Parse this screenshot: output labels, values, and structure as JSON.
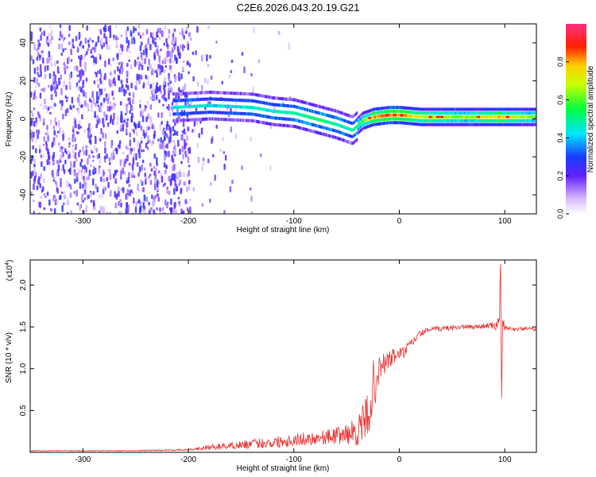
{
  "figure": {
    "title": "C2E6.2026.043.20.19.G21"
  },
  "colors": {
    "snr_line": "#e8302e",
    "axis": "#000000",
    "background": "#ffffff"
  },
  "chart_data": [
    {
      "type": "heatmap",
      "title": "C2E6.2026.043.20.19.G21",
      "xlabel": "Height of straight line (km)",
      "ylabel": "Frequency (Hz)",
      "xlim": [
        -350,
        130
      ],
      "ylim": [
        -50,
        50
      ],
      "x_ticks": [
        -300,
        -200,
        -100,
        0,
        100
      ],
      "y_ticks": [
        -40,
        -20,
        0,
        20,
        40
      ],
      "colorbar": {
        "label": "Normalized spectral amplitude",
        "range": [
          0,
          1
        ],
        "ticks": [
          0.0,
          0.2,
          0.4,
          0.6,
          0.8
        ],
        "tick_labels": [
          "0.0",
          "0.2",
          "0.4",
          "0.6",
          "0.8"
        ]
      },
      "ridge": [
        {
          "x": -215,
          "y": 6,
          "amp": 0.45
        },
        {
          "x": -180,
          "y": 7,
          "amp": 0.42
        },
        {
          "x": -140,
          "y": 6,
          "amp": 0.44
        },
        {
          "x": -120,
          "y": 4,
          "amp": 0.46
        },
        {
          "x": -100,
          "y": 3,
          "amp": 0.48
        },
        {
          "x": -80,
          "y": 0,
          "amp": 0.52
        },
        {
          "x": -60,
          "y": -3,
          "amp": 0.5
        },
        {
          "x": -45,
          "y": -6,
          "amp": 0.45
        },
        {
          "x": -35,
          "y": -1,
          "amp": 0.6
        },
        {
          "x": -25,
          "y": 1,
          "amp": 0.78
        },
        {
          "x": -10,
          "y": 2,
          "amp": 0.85
        },
        {
          "x": 0,
          "y": 2,
          "amp": 0.8
        },
        {
          "x": 20,
          "y": 1,
          "amp": 0.7
        },
        {
          "x": 60,
          "y": 1,
          "amp": 0.62
        },
        {
          "x": 95,
          "y": 1,
          "amp": 0.75
        },
        {
          "x": 130,
          "y": 1,
          "amp": 0.6
        }
      ]
    },
    {
      "type": "line",
      "xlabel": "Height of straight line (km)",
      "ylabel": "SNR (10 * v/v)",
      "y_scale_label": "(x10^4)",
      "y_scale_base": "(x10",
      "y_scale_exponent": "4",
      "xlim": [
        -350,
        130
      ],
      "ylim": [
        0,
        2.3
      ],
      "x_ticks": [
        -300,
        -200,
        -100,
        0,
        100
      ],
      "y_ticks": [
        0.5,
        1.0,
        1.5,
        2.0
      ],
      "y_tick_labels": [
        "0.5",
        "1.0",
        "1.5",
        "2.0"
      ],
      "series": [
        {
          "name": "SNR",
          "x": [
            -350,
            -300,
            -250,
            -200,
            -180,
            -150,
            -120,
            -100,
            -80,
            -60,
            -50,
            -40,
            -35,
            -30,
            -25,
            -20,
            -15,
            -10,
            -5,
            0,
            5,
            10,
            15,
            20,
            25,
            30,
            40,
            50,
            60,
            70,
            80,
            90,
            93,
            95,
            96,
            97,
            98,
            100,
            105,
            110,
            120,
            130
          ],
          "y": [
            0.02,
            0.02,
            0.02,
            0.03,
            0.06,
            0.09,
            0.12,
            0.15,
            0.17,
            0.2,
            0.22,
            0.25,
            0.32,
            0.45,
            0.75,
            0.95,
            1.05,
            1.1,
            1.15,
            1.18,
            1.2,
            1.28,
            1.35,
            1.42,
            1.45,
            1.47,
            1.48,
            1.49,
            1.5,
            1.5,
            1.51,
            1.52,
            1.5,
            1.7,
            2.25,
            0.65,
            1.55,
            1.48,
            1.48,
            1.47,
            1.48,
            1.47
          ],
          "noise": [
            0.005,
            0.005,
            0.006,
            0.01,
            0.03,
            0.05,
            0.07,
            0.08,
            0.08,
            0.1,
            0.12,
            0.18,
            0.22,
            0.3,
            0.35,
            0.18,
            0.15,
            0.12,
            0.1,
            0.08,
            0.07,
            0.06,
            0.05,
            0.04,
            0.03,
            0.03,
            0.03,
            0.03,
            0.03,
            0.03,
            0.03,
            0.04,
            0.08,
            0.15,
            0.0,
            0.0,
            0.1,
            0.03,
            0.02,
            0.02,
            0.02,
            0.02
          ]
        }
      ]
    }
  ]
}
